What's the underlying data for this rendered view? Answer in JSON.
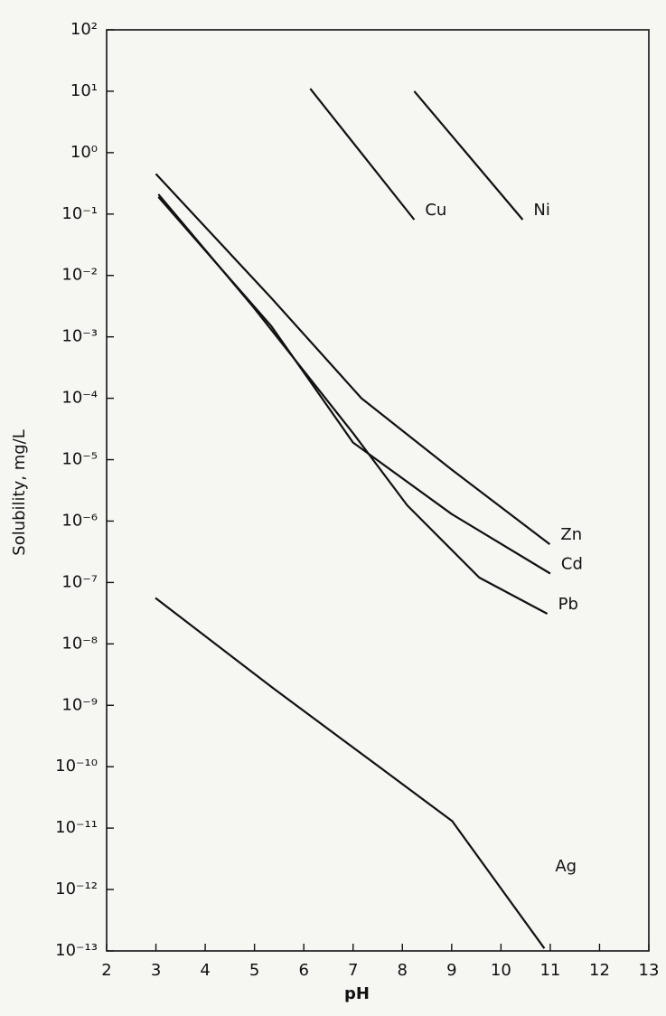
{
  "chart_data": {
    "type": "line",
    "x_label": "pH",
    "y_label": "Solubility, mg/L",
    "yscale": "log",
    "xlim": [
      2,
      13
    ],
    "ylim": [
      1e-13,
      100
    ],
    "xticks": [
      2,
      3,
      4,
      5,
      6,
      7,
      8,
      9,
      10,
      11,
      12,
      13
    ],
    "yticks": [
      {
        "value": 100,
        "label": "10²"
      },
      {
        "value": 10,
        "label": "10¹"
      },
      {
        "value": 1,
        "label": "10⁰"
      },
      {
        "value": 0.1,
        "label": "10⁻¹"
      },
      {
        "value": 0.01,
        "label": "10⁻²"
      },
      {
        "value": 0.001,
        "label": "10⁻³"
      },
      {
        "value": 0.0001,
        "label": "10⁻⁴"
      },
      {
        "value": 1e-05,
        "label": "10⁻⁵"
      },
      {
        "value": 1e-06,
        "label": "10⁻⁶"
      },
      {
        "value": 1e-07,
        "label": "10⁻⁷"
      },
      {
        "value": 1e-08,
        "label": "10⁻⁸"
      },
      {
        "value": 1e-09,
        "label": "10⁻⁹"
      },
      {
        "value": 1e-10,
        "label": "10⁻¹⁰"
      },
      {
        "value": 1e-11,
        "label": "10⁻¹¹"
      },
      {
        "value": 1e-12,
        "label": "10⁻¹²"
      },
      {
        "value": 1e-13,
        "label": "10⁻¹³"
      }
    ],
    "series": [
      {
        "name": "Cu",
        "color": "#111111",
        "x": [
          6.13,
          8.24
        ],
        "values": [
          11,
          0.081
        ]
      },
      {
        "name": "Ni",
        "color": "#111111",
        "x": [
          8.24,
          10.44
        ],
        "values": [
          10,
          0.081
        ]
      },
      {
        "name": "Zn",
        "color": "#111111",
        "x": [
          3.0,
          5.34,
          7.17,
          9.0,
          10.99
        ],
        "values": [
          0.45,
          0.0043,
          0.0001,
          6.9e-06,
          4.2e-07
        ]
      },
      {
        "name": "Cd",
        "color": "#111111",
        "x": [
          3.05,
          5.34,
          7.0,
          9.0,
          11.0
        ],
        "values": [
          0.19,
          0.0015,
          1.9e-05,
          1.3e-06,
          1.4e-07
        ]
      },
      {
        "name": "Pb",
        "color": "#111111",
        "x": [
          3.05,
          4.97,
          7.0,
          8.1,
          9.56,
          10.94
        ],
        "values": [
          0.21,
          0.0031,
          2.7e-05,
          1.8e-06,
          1.2e-07,
          3.1e-08
        ]
      },
      {
        "name": "Ag",
        "color": "#111111",
        "x": [
          2.99,
          5.34,
          7.54,
          9.01,
          10.88
        ],
        "values": [
          5.6e-08,
          2e-09,
          9.8e-11,
          1.3e-11,
          1.1e-13
        ]
      }
    ]
  }
}
